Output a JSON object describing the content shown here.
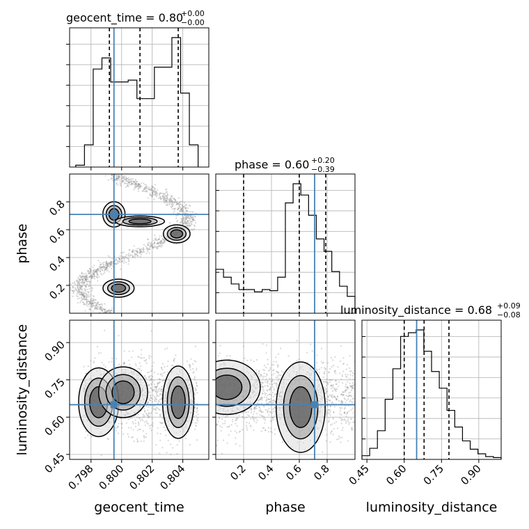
{
  "chart_data": {
    "type": "corner",
    "parameters": [
      "geocent_time",
      "phase",
      "luminosity_distance"
    ],
    "axis_labels": {
      "geocent_time": "geocent_time",
      "phase": "phase",
      "luminosity_distance": "luminosity_distance"
    },
    "titles": [
      {
        "param": "geocent_time",
        "base": "geocent_time = 0.80",
        "upper": "+0.00",
        "lower": "−0.00"
      },
      {
        "param": "phase",
        "base": "phase = 0.60",
        "upper": "+0.20",
        "lower": "−0.39"
      },
      {
        "param": "luminosity_distance",
        "base": "luminosity_distance = 0.68",
        "upper": "+0.09",
        "lower": "−0.08"
      }
    ],
    "ranges": {
      "geocent_time": [
        0.7966,
        0.8057
      ],
      "phase": [
        0.0,
        1.0
      ],
      "luminosity_distance": [
        0.43,
        0.99
      ]
    },
    "ticks": {
      "geocent_time": {
        "values": [
          0.798,
          0.8,
          0.802,
          0.804
        ],
        "labels": [
          "0.798",
          "0.800",
          "0.802",
          "0.804"
        ]
      },
      "phase": {
        "values": [
          0.2,
          0.4,
          0.6,
          0.8
        ],
        "labels": [
          "0.2",
          "0.4",
          "0.6",
          "0.8"
        ]
      },
      "luminosity_distance": {
        "values": [
          0.45,
          0.6,
          0.75,
          0.9
        ],
        "labels": [
          "0.45",
          "0.60",
          "0.75",
          "0.90"
        ]
      }
    },
    "truths": {
      "geocent_time": 0.7995,
      "phase": 0.71,
      "luminosity_distance": 0.65
    },
    "quantiles": {
      "geocent_time": [
        0.7992,
        0.8012,
        0.8037
      ],
      "phase": [
        0.2,
        0.6,
        0.79
      ],
      "luminosity_distance": [
        0.6,
        0.68,
        0.78
      ]
    },
    "histograms": [
      {
        "param": "geocent_time",
        "values": [
          1,
          12,
          53,
          59,
          46,
          46,
          47,
          37,
          37,
          54,
          54,
          70,
          40,
          12
        ]
      },
      {
        "param": "phase",
        "values": [
          39,
          32,
          26,
          21,
          21,
          19,
          21,
          20,
          32,
          98,
          115,
          105,
          87,
          66,
          55,
          37,
          24,
          15
        ]
      },
      {
        "param": "luminosity_distance",
        "values": [
          4,
          12,
          31,
          65,
          98,
          133,
          137,
          140,
          117,
          95,
          77,
          53,
          35,
          20,
          11,
          6,
          3,
          2
        ]
      }
    ],
    "grid": true,
    "show_scatter": true,
    "show_contours": true
  },
  "style": {
    "hist_color": "#000000",
    "truth_color": "#4682b4",
    "quantile_color": "#000000",
    "grid_color": "#b0b0b0",
    "scatter_color": "#8c8c8c"
  }
}
